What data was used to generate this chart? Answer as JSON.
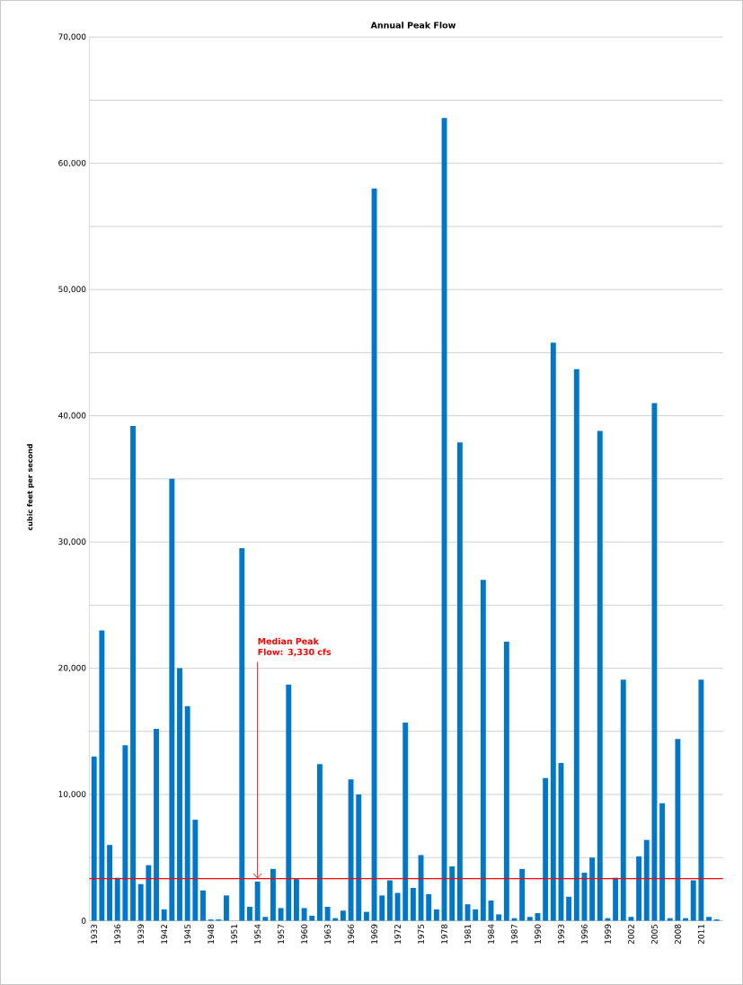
{
  "chart_data": {
    "type": "bar",
    "title": "Annual Peak Flow",
    "ylabel": "cubic feet per second",
    "categories": [
      "1933",
      null,
      null,
      "1936",
      null,
      null,
      "1939",
      null,
      null,
      "1942",
      null,
      null,
      "1945",
      null,
      null,
      "1948",
      null,
      null,
      "1951",
      null,
      null,
      "1954",
      null,
      null,
      "1957",
      null,
      null,
      "1960",
      null,
      null,
      "1963",
      null,
      null,
      "1966",
      null,
      null,
      "1969",
      null,
      null,
      "1972",
      null,
      null,
      "1975",
      null,
      null,
      "1978",
      null,
      null,
      "1981",
      null,
      null,
      "1984",
      null,
      null,
      "1987",
      null,
      null,
      "1990",
      null,
      null,
      "1993",
      null,
      null,
      "1996",
      null,
      null,
      "1999",
      null,
      null,
      "2002",
      null,
      null,
      "2005",
      null,
      null,
      "2008",
      null,
      null,
      "2011",
      null,
      null
    ],
    "values": [
      13000,
      23000,
      6000,
      3400,
      13900,
      39200,
      2900,
      4400,
      15200,
      900,
      35000,
      20000,
      17000,
      8000,
      2400,
      100,
      100,
      2000,
      0,
      29500,
      1100,
      3100,
      300,
      4100,
      1000,
      18700,
      3300,
      1000,
      400,
      12400,
      1100,
      200,
      800,
      11200,
      10000,
      700,
      58000,
      2000,
      3200,
      2200,
      15700,
      2600,
      5200,
      2100,
      900,
      63600,
      4300,
      37900,
      1300,
      900,
      27000,
      1600,
      500,
      22100,
      200,
      4100,
      300,
      600,
      11300,
      45800,
      12500,
      1900,
      43700,
      3800,
      5000,
      38800,
      200,
      3400,
      19100,
      300,
      5100,
      6400,
      41000,
      9300,
      200,
      14400,
      200,
      3200,
      19100,
      300,
      100
    ],
    "color": "#0077c8",
    "ylim": [
      0,
      70000
    ],
    "yticks": [
      0,
      {
        "value": 5000,
        "label": null
      },
      {
        "value": 10000,
        "label": "10,000"
      },
      {
        "value": 15000,
        "label": null
      },
      {
        "value": 20000,
        "label": "20,000"
      },
      {
        "value": 25000,
        "label": null
      },
      {
        "value": 30000,
        "label": "30,000"
      },
      {
        "value": 35000,
        "label": null
      },
      {
        "value": 40000,
        "label": "40,000"
      },
      {
        "value": 45000,
        "label": null
      },
      {
        "value": 50000,
        "label": "50,000"
      },
      {
        "value": 55000,
        "label": null
      },
      {
        "value": 60000,
        "label": "60,000"
      },
      {
        "value": 65000,
        "label": null
      },
      {
        "value": 70000,
        "label": "70,000"
      }
    ],
    "grid": "y",
    "ref_lines": [
      {
        "axis": "y",
        "value": 3330,
        "color": "#ff0000"
      }
    ],
    "annotations": [
      {
        "text": "Median Peak Flow: 3,330 cfs",
        "x": "1954",
        "y": 3330
      }
    ]
  }
}
